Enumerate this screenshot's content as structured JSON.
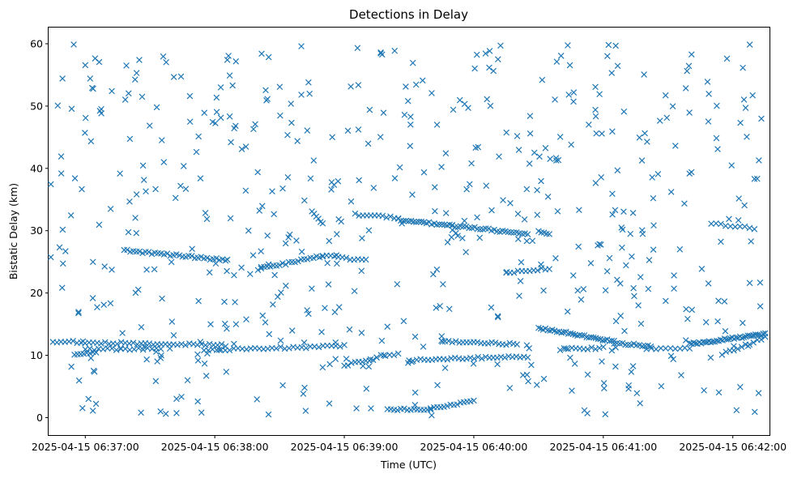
{
  "chart_data": {
    "type": "scatter",
    "title": "Detections in Delay",
    "xlabel": "Time (UTC)",
    "ylabel": "Bistatic Delay (km)",
    "x_unit": "seconds after 2025-04-15 06:37:00",
    "xlim": [
      -17,
      317
    ],
    "ylim": [
      -2.8,
      62.6
    ],
    "x_ticks": [
      {
        "value": 0,
        "label": "2025-04-15 06:37:00"
      },
      {
        "value": 60,
        "label": "2025-04-15 06:38:00"
      },
      {
        "value": 120,
        "label": "2025-04-15 06:39:00"
      },
      {
        "value": 180,
        "label": "2025-04-15 06:40:00"
      },
      {
        "value": 240,
        "label": "2025-04-15 06:41:00"
      },
      {
        "value": 300,
        "label": "2025-04-15 06:42:00"
      }
    ],
    "y_ticks": [
      {
        "value": 0,
        "label": "0"
      },
      {
        "value": 10,
        "label": "10"
      },
      {
        "value": 20,
        "label": "20"
      },
      {
        "value": 30,
        "label": "30"
      },
      {
        "value": 40,
        "label": "40"
      },
      {
        "value": 50,
        "label": "50"
      },
      {
        "value": 60,
        "label": "60"
      }
    ],
    "marker": "x",
    "color": "#1f77b4",
    "series": [
      {
        "name": "Detections",
        "tracks": [
          {
            "x": [
              -15,
              65
            ],
            "y": [
              12.2,
              11.6
            ],
            "n": 44
          },
          {
            "x": [
              -5,
              5
            ],
            "y": [
              10.0,
              10.4
            ],
            "n": 8
          },
          {
            "x": [
              0,
              35
            ],
            "y": [
              11.0,
              11.0
            ],
            "n": 18
          },
          {
            "x": [
              55,
              120
            ],
            "y": [
              10.8,
              11.5
            ],
            "n": 34
          },
          {
            "x": [
              18,
              65
            ],
            "y": [
              26.8,
              25.3
            ],
            "n": 34
          },
          {
            "x": [
              80,
              110
            ],
            "y": [
              23.8,
              26.0
            ],
            "n": 22
          },
          {
            "x": [
              110,
              130
            ],
            "y": [
              26.0,
              25.2
            ],
            "n": 12
          },
          {
            "x": [
              105,
              110
            ],
            "y": [
              33.2,
              31.0
            ],
            "n": 6
          },
          {
            "x": [
              125,
              145
            ],
            "y": [
              32.6,
              32.0
            ],
            "n": 12
          },
          {
            "x": [
              145,
              170
            ],
            "y": [
              31.8,
              30.8
            ],
            "n": 22
          },
          {
            "x": [
              170,
              205
            ],
            "y": [
              30.8,
              29.5
            ],
            "n": 28
          },
          {
            "x": [
              120,
              135
            ],
            "y": [
              8.4,
              9.5
            ],
            "n": 10
          },
          {
            "x": [
              135,
              145
            ],
            "y": [
              9.8,
              10.2
            ],
            "n": 6
          },
          {
            "x": [
              140,
              160
            ],
            "y": [
              1.2,
              1.4
            ],
            "n": 14
          },
          {
            "x": [
              160,
              180
            ],
            "y": [
              1.6,
              2.6
            ],
            "n": 14
          },
          {
            "x": [
              150,
              205
            ],
            "y": [
              9.2,
              9.8
            ],
            "n": 32
          },
          {
            "x": [
              165,
              200
            ],
            "y": [
              12.2,
              11.8
            ],
            "n": 22
          },
          {
            "x": [
              195,
              215
            ],
            "y": [
              23.2,
              24.0
            ],
            "n": 12
          },
          {
            "x": [
              210,
              245
            ],
            "y": [
              14.4,
              12.2
            ],
            "n": 34
          },
          {
            "x": [
              245,
              262
            ],
            "y": [
              12.0,
              11.5
            ],
            "n": 14
          },
          {
            "x": [
              220,
              240
            ],
            "y": [
              11.0,
              11.2
            ],
            "n": 12
          },
          {
            "x": [
              260,
              280
            ],
            "y": [
              11.0,
              11.2
            ],
            "n": 10
          },
          {
            "x": [
              280,
              315
            ],
            "y": [
              11.8,
              13.4
            ],
            "n": 40
          },
          {
            "x": [
              295,
              315
            ],
            "y": [
              10.2,
              12.8
            ],
            "n": 12
          },
          {
            "x": [
              290,
              310
            ],
            "y": [
              31.2,
              30.4
            ],
            "n": 10
          },
          {
            "x": [
              210,
              215
            ],
            "y": [
              29.8,
              29.4
            ],
            "n": 5
          }
        ],
        "noise": {
          "count": 560,
          "x_range": [
            -16,
            315
          ],
          "y_range": [
            0.3,
            60
          ],
          "seed": 20250415
        }
      }
    ]
  }
}
